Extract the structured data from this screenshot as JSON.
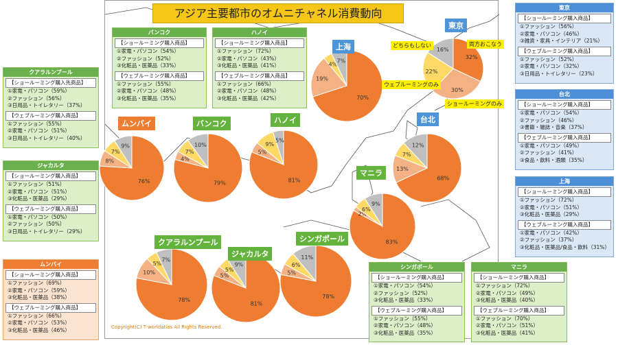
{
  "title": "アジア主要都市のオムニチャネル消費動向",
  "copyright": "Copyright(C) T-worldatlas All Rights Reserved.",
  "legend": {
    "both": "両方おこなう",
    "neither": "どちらもしない",
    "web": "ウェブルーミングのみ",
    "show": "ショールーミングのみ"
  },
  "colors": {
    "both": "#ee7d31",
    "show": "#f4b183",
    "web": "#ffd966",
    "neither": "#bfbfbf"
  },
  "chart_data": [
    {
      "type": "pie",
      "city": "東京",
      "slices": [
        {
          "name": "両方おこなう",
          "value": 32
        },
        {
          "name": "ショールーミングのみ",
          "value": 30
        },
        {
          "name": "ウェブルーミングのみ",
          "value": 22
        },
        {
          "name": "どちらもしない",
          "value": 16
        }
      ]
    },
    {
      "type": "pie",
      "city": "上海",
      "slices": [
        {
          "name": "両方おこなう",
          "value": 70
        },
        {
          "name": "ショールーミングのみ",
          "value": 19
        },
        {
          "name": "ウェブルーミングのみ",
          "value": 4
        },
        {
          "name": "どちらもしない",
          "value": 7
        }
      ]
    },
    {
      "type": "pie",
      "city": "台北",
      "slices": [
        {
          "name": "両方おこなう",
          "value": 68
        },
        {
          "name": "ショールーミングのみ",
          "value": 13
        },
        {
          "name": "ウェブルーミングのみ",
          "value": 7
        },
        {
          "name": "どちらもしない",
          "value": 12
        }
      ]
    },
    {
      "type": "pie",
      "city": "ムンバイ",
      "slices": [
        {
          "name": "両方おこなう",
          "value": 76
        },
        {
          "name": "ショールーミングのみ",
          "value": 8
        },
        {
          "name": "ウェブルーミングのみ",
          "value": 7
        },
        {
          "name": "どちらもしない",
          "value": 9
        }
      ]
    },
    {
      "type": "pie",
      "city": "バンコク",
      "slices": [
        {
          "name": "両方おこなう",
          "value": 79
        },
        {
          "name": "ショールーミングのみ",
          "value": 4
        },
        {
          "name": "ウェブルーミングのみ",
          "value": 7
        },
        {
          "name": "どちらもしない",
          "value": 10
        }
      ]
    },
    {
      "type": "pie",
      "city": "ハノイ",
      "slices": [
        {
          "name": "両方おこなう",
          "value": 81
        },
        {
          "name": "ショールーミングのみ",
          "value": 5
        },
        {
          "name": "ウェブルーミングのみ",
          "value": 9
        },
        {
          "name": "どちらもしない",
          "value": 5
        }
      ]
    },
    {
      "type": "pie",
      "city": "マニラ",
      "slices": [
        {
          "name": "両方おこなう",
          "value": 83
        },
        {
          "name": "ショールーミングのみ",
          "value": 2
        },
        {
          "name": "ウェブルーミングのみ",
          "value": 6
        },
        {
          "name": "どちらもしない",
          "value": 9
        }
      ]
    },
    {
      "type": "pie",
      "city": "クアラルンプール",
      "slices": [
        {
          "name": "両方おこなう",
          "value": 78
        },
        {
          "name": "ショールーミングのみ",
          "value": 10
        },
        {
          "name": "ウェブルーミングのみ",
          "value": 5
        },
        {
          "name": "どちらもしない",
          "value": 7
        }
      ]
    },
    {
      "type": "pie",
      "city": "ジャカルタ",
      "slices": [
        {
          "name": "両方おこなう",
          "value": 81
        },
        {
          "name": "ショールーミングのみ",
          "value": 5
        },
        {
          "name": "ウェブルーミングのみ",
          "value": 5
        },
        {
          "name": "どちらもしない",
          "value": 9
        }
      ]
    },
    {
      "type": "pie",
      "city": "シンガポール",
      "slices": [
        {
          "name": "両方おこなう",
          "value": 78
        },
        {
          "name": "ショールーミングのみ",
          "value": 5
        },
        {
          "name": "ウェブルーミングのみ",
          "value": 6
        },
        {
          "name": "どちらもしない",
          "value": 11
        }
      ]
    }
  ],
  "boxes": {
    "kl": {
      "city": "クアラルンプール",
      "s1": "【ショールーミング購入先商品】",
      "i1": [
        "①家電・パソコン（59%）",
        "②ファッション（56%）",
        "③日用品・トイレタリー（37%）"
      ],
      "s2": "【ウェブルーミング購入商品】",
      "i2": [
        "①ファッション（55%）",
        "②家電・パソコン（51%）",
        "③日用品・トイレタリー（40%）"
      ]
    },
    "jakarta": {
      "city": "ジャカルタ",
      "s1": "【ショールーミング購入商品】",
      "i1": [
        "①ファッション（51%）",
        "②家電・パソコン（51%）",
        "③化粧品・医薬品（29%）"
      ],
      "s2": "【ウェブルーミング購入商品】",
      "i2": [
        "①家電・パソコン（50%）",
        "②ファッション（50%）",
        "③日用品・トイレタリー（29%）"
      ]
    },
    "mumbai": {
      "city": "ムンバイ",
      "s1": "【ショールーミング購入商品】",
      "i1": [
        "①ファッション（69%）",
        "②家電・パソコン（59%）",
        "③化粧品・医薬品（38%）"
      ],
      "s2": "【ウェブルーミング購入商品】",
      "i2": [
        "①ファッション（66%）",
        "②家電・パソコン（53%）",
        "③化粧品・医薬品（46%）"
      ]
    },
    "bangkok": {
      "city": "バンコク",
      "s1": "【ショールーミング購入商品】",
      "i1": [
        "①家電・パソコン（54%）",
        "②ファッション（52%）",
        "③化粧品・医薬品（33%）"
      ],
      "s2": "【ウェブルーミング購入商品】",
      "i2": [
        "①ファッション（55%）",
        "②家電・パソコン（48%）",
        "③化粧品・医薬品（35%）"
      ]
    },
    "hanoi": {
      "city": "ハノイ",
      "s1": "【ショールーミング購入商品】",
      "i1": [
        "①ファッション（72%）",
        "②家電・パソコン（43%）",
        "③化粧品・医薬品（41%）"
      ],
      "s2": "【ウェブルーミング購入商品】",
      "i2": [
        "①ファッション（66%）",
        "②家電・パソコン（48%）",
        "③化粧品・医薬品（42%）"
      ]
    },
    "tokyo": {
      "city": "東京",
      "s1": "【ショールーミング購入商品】",
      "i1": [
        "①ファッション（56%）",
        "②家電・パソコン（46%）",
        "③雑貨・家具・インテリア（21%）"
      ],
      "s2": "【ウェブルーミング購入商品】",
      "i2": [
        "①ファッション（52%）",
        "②家電・パソコン（32%）",
        "③日用品・トイレタリー（23%）"
      ]
    },
    "taipei": {
      "city": "台北",
      "s1": "【ショールーミング購入商品】",
      "i1": [
        "①家電・パソコン（54%）",
        "②ファッション（46%）",
        "③書籍・雑誌・音楽（37%）"
      ],
      "s2": "【ウェブルーミング購入商品】",
      "i2": [
        "①家電・パソコン（49%）",
        "②ファッション（41%）",
        "③食品・飲料・酒類（35%）"
      ]
    },
    "shanghai": {
      "city": "上海",
      "s1": "【ショールーミング購入商品】",
      "i1": [
        "①ファッション（72%）",
        "②家電・パソコン（51%）",
        "③化粧品・医薬品（29%）"
      ],
      "s2": "【ウェブルーミング購入商品】",
      "i2": [
        "①家電・パソコン（42%）",
        "②ファッション（37%）",
        "③化粧品・医薬品/食品・飲料（31%）"
      ]
    },
    "singapore": {
      "city": "シンガポール",
      "s1": "【ショールーミング購入商品】",
      "i1": [
        "①家電・パソコン（54%）",
        "②ファッション（52%）",
        "③化粧品・医薬品（33%）"
      ],
      "s2": "【ウェブルーミング購入商品】",
      "i2": [
        "①ファッション（55%）",
        "②家電・パソコン（48%）",
        "③化粧品・医薬品（35%）"
      ]
    },
    "manila": {
      "city": "マニラ",
      "s1": "【ショールーミング購入商品】",
      "i1": [
        "①ファッション（72%）",
        "②家電・パソコン（49%）",
        "③化粧品・医薬品（40%）"
      ],
      "s2": "【ウェブルーミング購入商品】",
      "i2": [
        "①ファッション（70%）",
        "②家電・パソコン（51%）",
        "③化粧品・医薬品（41%）"
      ]
    }
  }
}
